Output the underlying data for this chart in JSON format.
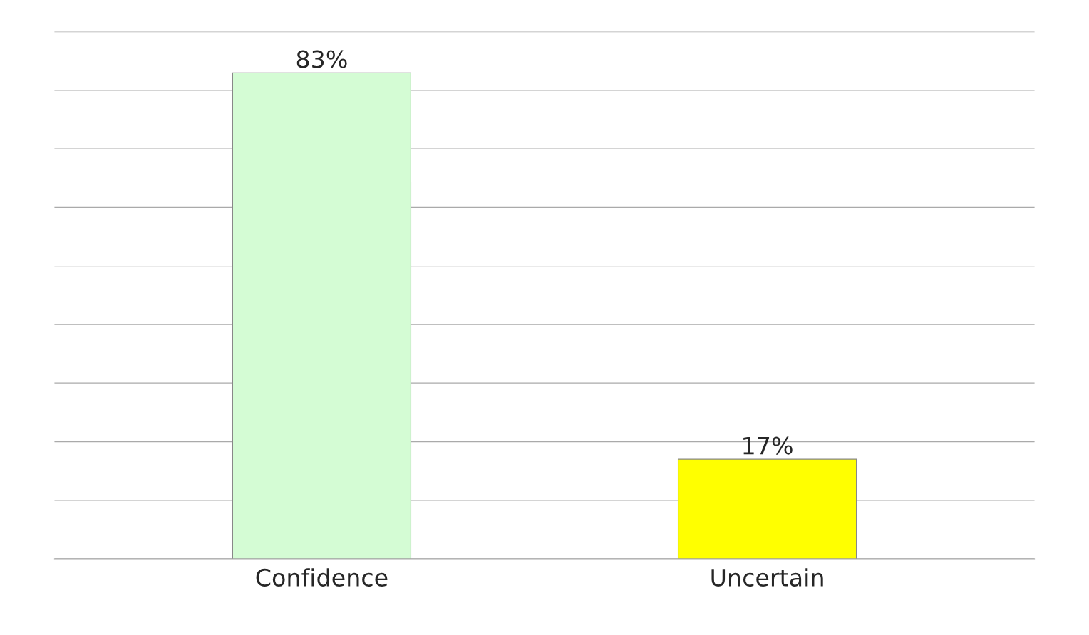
{
  "chart_data": {
    "type": "bar",
    "categories": [
      "Confidence",
      "Uncertain"
    ],
    "values": [
      83,
      17
    ],
    "colors": [
      "#d4fcd4",
      "#ffff00"
    ],
    "value_labels": [
      "83%",
      "17%"
    ],
    "ylim": [
      0,
      90
    ],
    "yticks": [
      {
        "value": 0,
        "label": null
      },
      {
        "value": 10,
        "label": null
      },
      {
        "value": 20,
        "label": null
      },
      {
        "value": 30,
        "label": null
      },
      {
        "value": 40,
        "label": null
      },
      {
        "value": 50,
        "label": null
      },
      {
        "value": 60,
        "label": null
      },
      {
        "value": 70,
        "label": null
      },
      {
        "value": 80,
        "label": null
      },
      {
        "value": 90,
        "label": null
      }
    ],
    "grid": "y",
    "tick_labels": "x"
  }
}
